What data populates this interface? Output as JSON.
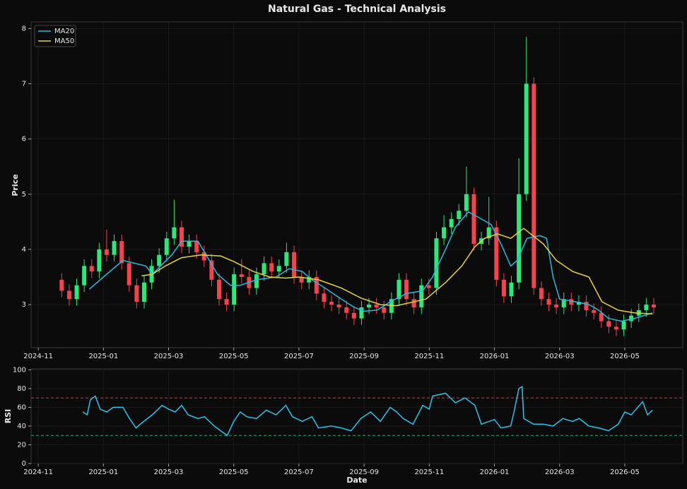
{
  "chart_data": [
    {
      "type": "candlestick",
      "title": "Natural Gas - Technical Analysis",
      "ylabel": "Price",
      "x": [
        0.72,
        0.95,
        1.18,
        1.41,
        1.64,
        1.87,
        2.1,
        2.33,
        2.56,
        2.79,
        3.02,
        3.25,
        3.48,
        3.71,
        3.94,
        4.17,
        4.4,
        4.63,
        4.86,
        5.09,
        5.32,
        5.55,
        5.78,
        6.01,
        6.24,
        6.47,
        6.7,
        6.93,
        7.16,
        7.39,
        7.62,
        7.85,
        8.08,
        8.31,
        8.54,
        8.77,
        9.0,
        9.23,
        9.46,
        9.69,
        9.92,
        10.15,
        10.38,
        10.61,
        10.84,
        11.07,
        11.3,
        11.53,
        11.76,
        11.99,
        12.22,
        12.45,
        12.68,
        12.91,
        13.14,
        13.37,
        13.6,
        13.83,
        14.06,
        14.29,
        14.52,
        14.75,
        14.98,
        15.21,
        15.44,
        15.67,
        15.9,
        16.13,
        16.36,
        16.59,
        16.82,
        17.05,
        17.28,
        17.51,
        17.74,
        17.97,
        18.2,
        18.43,
        18.66,
        18.89
      ],
      "open": [
        3.45,
        3.25,
        3.1,
        3.35,
        3.7,
        3.6,
        4.0,
        3.9,
        4.15,
        3.75,
        3.35,
        3.05,
        3.4,
        3.7,
        3.9,
        4.2,
        4.4,
        4.05,
        4.15,
        3.95,
        3.8,
        3.45,
        3.1,
        3.0,
        3.55,
        3.5,
        3.3,
        3.55,
        3.75,
        3.6,
        3.7,
        3.95,
        3.5,
        3.4,
        3.5,
        3.2,
        3.05,
        3.0,
        2.95,
        2.85,
        2.75,
        2.95,
        3.0,
        2.95,
        2.85,
        3.1,
        3.45,
        3.1,
        2.95,
        3.35,
        3.3,
        4.2,
        4.4,
        4.55,
        4.7,
        5.0,
        4.1,
        4.2,
        4.4,
        3.45,
        3.15,
        3.4,
        5.0,
        7.0,
        3.3,
        3.1,
        3.0,
        2.95,
        3.1,
        3.0,
        3.05,
        2.9,
        2.85,
        2.7,
        2.6,
        2.55,
        2.7,
        2.8,
        2.9,
        3.0
      ],
      "high": [
        3.57,
        3.37,
        3.47,
        3.82,
        3.82,
        4.12,
        4.36,
        4.27,
        4.27,
        3.87,
        3.47,
        3.52,
        3.82,
        4.02,
        4.32,
        4.9,
        4.52,
        4.27,
        4.27,
        4.07,
        3.92,
        3.57,
        3.22,
        3.67,
        3.82,
        3.62,
        3.67,
        3.87,
        3.87,
        3.82,
        4.12,
        4.07,
        3.62,
        3.62,
        3.62,
        3.32,
        3.17,
        3.12,
        3.07,
        2.97,
        3.07,
        3.12,
        3.12,
        3.07,
        3.22,
        3.57,
        3.57,
        3.22,
        3.47,
        3.47,
        4.32,
        4.62,
        4.67,
        4.82,
        5.5,
        5.12,
        4.32,
        4.95,
        4.52,
        3.57,
        3.52,
        5.65,
        7.85,
        7.12,
        3.42,
        3.22,
        3.12,
        3.22,
        3.22,
        3.17,
        3.17,
        3.02,
        2.97,
        2.82,
        2.72,
        2.82,
        2.92,
        3.02,
        3.12,
        3.12
      ],
      "low": [
        3.13,
        2.98,
        2.98,
        3.23,
        3.48,
        3.48,
        3.78,
        3.78,
        3.63,
        3.23,
        2.93,
        2.93,
        3.28,
        3.58,
        3.78,
        4.08,
        3.93,
        3.93,
        3.83,
        3.68,
        3.33,
        2.98,
        2.88,
        2.88,
        3.38,
        3.18,
        3.18,
        3.43,
        3.48,
        3.48,
        3.58,
        3.38,
        3.28,
        3.28,
        3.08,
        2.93,
        2.88,
        2.83,
        2.73,
        2.63,
        2.63,
        2.83,
        2.83,
        2.73,
        2.73,
        2.98,
        2.98,
        2.83,
        2.83,
        3.18,
        3.18,
        4.08,
        4.28,
        4.43,
        4.58,
        3.98,
        3.98,
        4.08,
        3.33,
        3.03,
        3.03,
        3.28,
        4.88,
        3.18,
        2.98,
        2.88,
        2.83,
        2.83,
        2.88,
        2.88,
        2.78,
        2.73,
        2.58,
        2.48,
        2.43,
        2.43,
        2.58,
        2.68,
        2.78,
        2.83
      ],
      "close": [
        3.25,
        3.1,
        3.35,
        3.7,
        3.6,
        4.0,
        3.9,
        4.15,
        3.75,
        3.35,
        3.05,
        3.4,
        3.7,
        3.9,
        4.2,
        4.4,
        4.05,
        4.15,
        3.95,
        3.8,
        3.45,
        3.1,
        3.0,
        3.55,
        3.5,
        3.3,
        3.55,
        3.75,
        3.6,
        3.7,
        3.95,
        3.5,
        3.4,
        3.5,
        3.2,
        3.05,
        3.0,
        2.95,
        2.85,
        2.75,
        2.95,
        3.0,
        2.95,
        2.85,
        3.1,
        3.45,
        3.1,
        2.95,
        3.35,
        3.3,
        4.2,
        4.4,
        4.55,
        4.7,
        5.0,
        4.1,
        4.2,
        4.4,
        3.45,
        3.15,
        3.4,
        5.0,
        7.0,
        3.3,
        3.1,
        3.0,
        2.95,
        3.1,
        3.0,
        3.05,
        2.9,
        2.85,
        2.7,
        2.6,
        2.55,
        2.7,
        2.8,
        2.9,
        3.0,
        2.95
      ],
      "up_color": "#2ee67c",
      "down_color": "#f0444e",
      "series": [
        {
          "name": "MA20",
          "color": "#2bb8e0",
          "x": [
            1.57,
            2.0,
            2.6,
            3.3,
            3.5,
            4.1,
            4.4,
            4.9,
            5.2,
            5.5,
            5.9,
            6.2,
            6.7,
            7.3,
            7.7,
            8.1,
            8.4,
            8.8,
            9.3,
            9.7,
            10.0,
            10.4,
            10.8,
            11.3,
            11.8,
            12.1,
            12.5,
            12.8,
            13.2,
            13.6,
            13.9,
            14.2,
            14.5,
            14.7,
            15.0,
            15.4,
            15.6,
            15.8,
            16.0,
            16.5,
            16.9,
            17.2,
            17.5,
            17.9,
            18.3,
            18.85
          ],
          "values": [
            3.28,
            3.5,
            3.8,
            3.7,
            3.55,
            3.9,
            4.15,
            4.15,
            3.85,
            3.55,
            3.35,
            3.35,
            3.45,
            3.5,
            3.65,
            3.6,
            3.45,
            3.3,
            3.1,
            2.95,
            2.88,
            2.9,
            3.05,
            3.2,
            3.25,
            3.5,
            4.0,
            4.4,
            4.68,
            4.55,
            4.45,
            4.1,
            3.7,
            3.8,
            4.2,
            4.25,
            4.2,
            3.5,
            3.1,
            3.05,
            3.0,
            2.9,
            2.75,
            2.7,
            2.75,
            2.85
          ]
        },
        {
          "name": "MA50",
          "color": "#e6d43c",
          "x": [
            3.17,
            3.5,
            3.9,
            4.4,
            5.0,
            5.6,
            6.0,
            6.6,
            7.1,
            7.6,
            8.0,
            8.6,
            9.3,
            9.9,
            10.5,
            11.0,
            11.9,
            12.5,
            13.0,
            13.4,
            13.7,
            14.1,
            14.5,
            14.9,
            15.5,
            15.9,
            16.4,
            16.9,
            17.3,
            17.8,
            18.3,
            18.85
          ],
          "values": [
            3.52,
            3.55,
            3.7,
            3.85,
            3.9,
            3.88,
            3.78,
            3.6,
            3.5,
            3.48,
            3.5,
            3.45,
            3.3,
            3.12,
            3.0,
            2.98,
            3.1,
            3.4,
            3.7,
            4.05,
            4.2,
            4.28,
            4.2,
            4.38,
            4.1,
            3.8,
            3.6,
            3.5,
            3.05,
            2.9,
            2.85,
            2.83
          ]
        }
      ],
      "xlim": [
        -0.22,
        19.78
      ],
      "xticks": [
        {
          "value": 0,
          "label": "2024-11"
        },
        {
          "value": 2,
          "label": "2025-01"
        },
        {
          "value": 4,
          "label": "2025-03"
        },
        {
          "value": 6,
          "label": "2025-05"
        },
        {
          "value": 8,
          "label": "2025-07"
        },
        {
          "value": 10,
          "label": "2025-09"
        },
        {
          "value": 12,
          "label": "2025-11"
        },
        {
          "value": 14,
          "label": "2026-01"
        },
        {
          "value": 16,
          "label": "2026-03"
        },
        {
          "value": 18,
          "label": "2026-05"
        }
      ],
      "ylim": [
        2.22,
        8.12
      ],
      "yticks": [
        3,
        4,
        5,
        6,
        7,
        8
      ],
      "grid": true,
      "legend": "upper left"
    },
    {
      "type": "line",
      "ylabel": "RSI",
      "xlabel": "Date",
      "series": [
        {
          "color": "#2bc4ec",
          "x": [
            1.37,
            1.5,
            1.6,
            1.75,
            1.9,
            2.1,
            2.3,
            2.6,
            2.8,
            3.0,
            3.2,
            3.5,
            3.8,
            4.0,
            4.2,
            4.4,
            4.6,
            4.9,
            5.1,
            5.4,
            5.6,
            5.8,
            6.0,
            6.2,
            6.4,
            6.7,
            7.0,
            7.3,
            7.6,
            7.8,
            8.1,
            8.4,
            8.6,
            9.0,
            9.3,
            9.6,
            9.9,
            10.2,
            10.5,
            10.8,
            11.0,
            11.2,
            11.5,
            11.8,
            12.0,
            12.1,
            12.5,
            12.8,
            13.1,
            13.4,
            13.6,
            14.0,
            14.2,
            14.5,
            14.6,
            14.75,
            14.85,
            14.9,
            15.2,
            15.5,
            15.8,
            16.1,
            16.4,
            16.6,
            16.9,
            17.2,
            17.5,
            17.8,
            18.0,
            18.2,
            18.4,
            18.55,
            18.7,
            18.85
          ],
          "values": [
            55,
            52,
            68,
            72,
            58,
            55,
            60,
            60,
            48,
            38,
            44,
            52,
            62,
            58,
            55,
            62,
            52,
            48,
            50,
            40,
            35,
            30,
            45,
            55,
            50,
            48,
            57,
            52,
            62,
            50,
            45,
            50,
            38,
            40,
            38,
            35,
            48,
            55,
            45,
            60,
            55,
            48,
            42,
            62,
            58,
            72,
            75,
            65,
            70,
            62,
            42,
            47,
            38,
            40,
            55,
            80,
            82,
            48,
            42,
            42,
            40,
            48,
            45,
            48,
            40,
            38,
            35,
            42,
            55,
            52,
            60,
            66,
            52,
            57
          ]
        }
      ],
      "hlines": [
        {
          "value": 70,
          "color": "#d83c3c"
        },
        {
          "value": 30,
          "color": "#2aae6c"
        }
      ],
      "xlim": [
        -0.22,
        19.78
      ],
      "xticks": [
        {
          "value": 0,
          "label": "2024-11"
        },
        {
          "value": 2,
          "label": "2025-01"
        },
        {
          "value": 4,
          "label": "2025-03"
        },
        {
          "value": 6,
          "label": "2025-05"
        },
        {
          "value": 8,
          "label": "2025-07"
        },
        {
          "value": 10,
          "label": "2025-09"
        },
        {
          "value": 12,
          "label": "2025-11"
        },
        {
          "value": 14,
          "label": "2026-01"
        },
        {
          "value": 16,
          "label": "2026-03"
        },
        {
          "value": 18,
          "label": "2026-05"
        }
      ],
      "ylim": [
        0,
        101
      ],
      "yticks": [
        0,
        20,
        40,
        60,
        80,
        100
      ],
      "grid": true
    }
  ]
}
